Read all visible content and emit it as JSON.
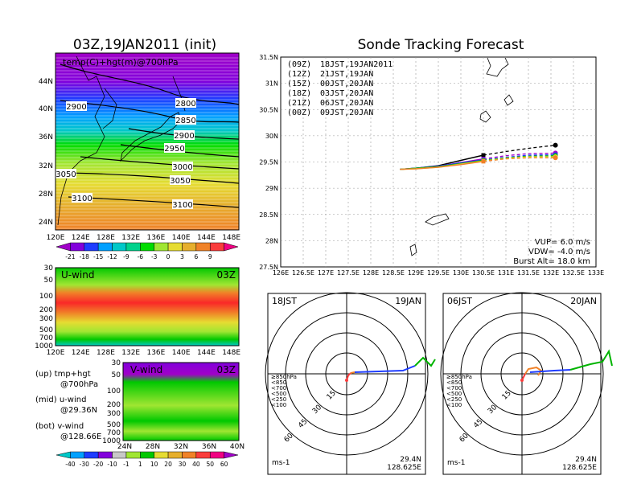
{
  "left_title": "03Z,19JAN2011 (init)",
  "right_title": "Sonde Tracking Forecast",
  "panel_top": {
    "label": "temp(C)+hgt(m)@700hPa",
    "lat_labels": [
      "44N",
      "40N",
      "36N",
      "32N",
      "28N",
      "24N"
    ],
    "lon_labels": [
      "120E",
      "124E",
      "128E",
      "132E",
      "136E",
      "140E",
      "144E",
      "148E"
    ],
    "contours": [
      "2800",
      "2850",
      "2900",
      "2900",
      "2950",
      "3000",
      "3050",
      "3050",
      "3100",
      "3100"
    ],
    "colorbar": [
      "-21",
      "-18",
      "-15",
      "-12",
      "-9",
      "-6",
      "-3",
      "0",
      "3",
      "6",
      "9"
    ],
    "colors": [
      "#a000c8",
      "#8200dc",
      "#1e3cff",
      "#00a0ff",
      "#00c8c8",
      "#00d28c",
      "#00dc00",
      "#a0e632",
      "#e6dc32",
      "#e6af2d",
      "#f08228",
      "#fa3c3c",
      "#f00082"
    ]
  },
  "panel_mid": {
    "label": "U-wind",
    "time": "03Z",
    "pres_labels": [
      "30",
      "50",
      "100",
      "200",
      "300",
      "500",
      "700",
      "1000"
    ],
    "lon_labels": [
      "120E",
      "124E",
      "128E",
      "132E",
      "136E",
      "140E",
      "144E",
      "148E"
    ]
  },
  "panel_bot": {
    "label": "V-wind",
    "time": "03Z",
    "pres_labels": [
      "30",
      "50",
      "100",
      "200",
      "300",
      "500",
      "700",
      "1000"
    ],
    "lat_labels": [
      "24N",
      "28N",
      "32N",
      "36N",
      "40N"
    ],
    "colorbar": [
      "-40",
      "-30",
      "-20",
      "-10",
      "-1",
      "1",
      "10",
      "20",
      "30",
      "40",
      "50",
      "60"
    ]
  },
  "side_notes": {
    "up": "(up) tmp+hgt",
    "up2": "@700hPa",
    "mid": "(mid) u-wind",
    "mid2": "@29.36N",
    "bot": "(bot) v-wind",
    "bot2": "@128.66E"
  },
  "legend": [
    {
      "code": "(09Z)",
      "text": "18JST,19JAN2011",
      "color": "#000000"
    },
    {
      "code": "(12Z)",
      "text": "21JST,19JAN",
      "color": "#a000c8"
    },
    {
      "code": "(15Z)",
      "text": "00JST,20JAN",
      "color": "#1e3cff"
    },
    {
      "code": "(18Z)",
      "text": "03JST,20JAN",
      "color": "#00b400"
    },
    {
      "code": "(21Z)",
      "text": "06JST,20JAN",
      "color": "#e6dc32"
    },
    {
      "code": "(00Z)",
      "text": "09JST,20JAN",
      "color": "#f08228"
    }
  ],
  "track_params": {
    "vup": "VUP=  6.0  m/s",
    "vdw": "VDW= -4.0  m/s",
    "burst": "Burst Alt=  18.0  km"
  },
  "hodo_left": {
    "time": "18JST",
    "date": "19JAN",
    "lat": "29.4N",
    "lon": "128.625E",
    "unit": "ms-1"
  },
  "hodo_right": {
    "time": "06JST",
    "date": "20JAN",
    "lat": "29.4N",
    "lon": "128.625E",
    "unit": "ms-1"
  },
  "hodo_rings": [
    "15",
    "30",
    "45",
    "60"
  ],
  "hodo_levels": [
    {
      "label": "≥850hPa",
      "color": "#fa3c3c"
    },
    {
      "label": "<850",
      "color": "#f08228"
    },
    {
      "label": "<700",
      "color": "#e6dc32"
    },
    {
      "label": "<500",
      "color": "#00b400"
    },
    {
      "label": "<250",
      "color": "#00c8c8"
    },
    {
      "label": "<100",
      "color": "#1e3cff"
    }
  ],
  "chart_data": {
    "type": "line",
    "title": "Sonde Tracking Forecast",
    "xlim": [
      126,
      133
    ],
    "ylim": [
      27.5,
      31.5
    ],
    "x_ticks": [
      "126E",
      "126.5E",
      "127E",
      "127.5E",
      "128E",
      "128.5E",
      "129E",
      "129.5E",
      "130E",
      "130.5E",
      "131E",
      "131.5E",
      "132E",
      "132.5E",
      "133E"
    ],
    "y_ticks": [
      "27.5N",
      "28N",
      "28.5N",
      "29N",
      "29.5N",
      "30N",
      "30.5N",
      "31N",
      "31.5N"
    ],
    "grid": true,
    "series": [
      {
        "name": "(09Z) 18JST,19JAN2011",
        "color": "#000000",
        "x": [
          128.65,
          129.0,
          129.5,
          130.0,
          130.5,
          131.0,
          131.5,
          132.1
        ],
        "y": [
          29.36,
          29.38,
          29.43,
          29.53,
          29.63,
          29.7,
          29.76,
          29.82
        ]
      },
      {
        "name": "(12Z) 21JST,19JAN",
        "color": "#a000c8",
        "x": [
          128.65,
          129.0,
          129.5,
          130.0,
          130.5,
          131.0,
          131.5,
          132.1
        ],
        "y": [
          29.36,
          29.38,
          29.42,
          29.49,
          29.56,
          29.62,
          29.66,
          29.67
        ]
      },
      {
        "name": "(15Z) 00JST,20JAN",
        "color": "#1e3cff",
        "x": [
          128.65,
          129.0,
          129.5,
          130.0,
          130.5,
          131.0,
          131.5,
          132.1
        ],
        "y": [
          29.36,
          29.38,
          29.42,
          29.48,
          29.54,
          29.59,
          29.63,
          29.64
        ]
      },
      {
        "name": "(18Z) 03JST,20JAN",
        "color": "#00b400",
        "x": [
          128.65,
          129.0,
          129.5,
          130.0,
          130.5,
          131.0,
          131.5,
          132.1
        ],
        "y": [
          29.36,
          29.38,
          29.41,
          29.47,
          29.53,
          29.58,
          29.61,
          29.62
        ]
      },
      {
        "name": "(21Z) 06JST,20JAN",
        "color": "#e6dc32",
        "x": [
          128.65,
          129.0,
          129.5,
          130.0,
          130.5,
          131.0,
          131.5,
          132.1
        ],
        "y": [
          29.36,
          29.37,
          29.4,
          29.46,
          29.52,
          29.57,
          29.6,
          29.6
        ]
      },
      {
        "name": "(00Z) 09JST,20JAN",
        "color": "#f08228",
        "x": [
          128.65,
          129.0,
          129.5,
          130.0,
          130.5,
          131.0,
          131.5,
          132.1
        ],
        "y": [
          29.36,
          29.37,
          29.4,
          29.45,
          29.51,
          29.56,
          29.58,
          29.58
        ]
      }
    ]
  }
}
